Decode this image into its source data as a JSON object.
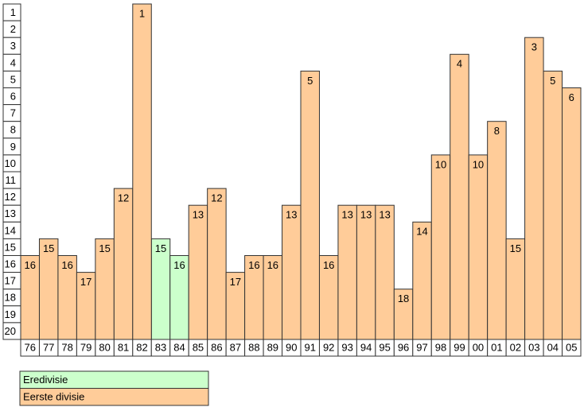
{
  "chart_data": {
    "type": "bar",
    "categories": [
      "76",
      "77",
      "78",
      "79",
      "80",
      "81",
      "82",
      "83",
      "84",
      "85",
      "86",
      "87",
      "88",
      "89",
      "90",
      "91",
      "92",
      "93",
      "94",
      "95",
      "96",
      "97",
      "98",
      "99",
      "00",
      "01",
      "02",
      "03",
      "04",
      "05"
    ],
    "series": [
      {
        "name": "Eredivisie",
        "color": "#ccffcc",
        "values": [
          null,
          null,
          null,
          null,
          null,
          null,
          null,
          15,
          16,
          null,
          null,
          null,
          null,
          null,
          null,
          null,
          null,
          null,
          null,
          null,
          null,
          null,
          null,
          null,
          null,
          null,
          null,
          null,
          null,
          null
        ]
      },
      {
        "name": "Eerste divisie",
        "color": "#ffcc99",
        "values": [
          16,
          15,
          16,
          17,
          15,
          12,
          1,
          null,
          null,
          13,
          12,
          17,
          16,
          16,
          13,
          5,
          16,
          13,
          13,
          13,
          18,
          14,
          10,
          4,
          10,
          8,
          15,
          3,
          5,
          6
        ]
      }
    ],
    "ylim": [
      1,
      21
    ],
    "yticks": [
      1,
      2,
      3,
      4,
      5,
      6,
      7,
      8,
      9,
      10,
      11,
      12,
      13,
      14,
      15,
      16,
      17,
      18,
      19,
      20
    ],
    "inverted": true
  }
}
